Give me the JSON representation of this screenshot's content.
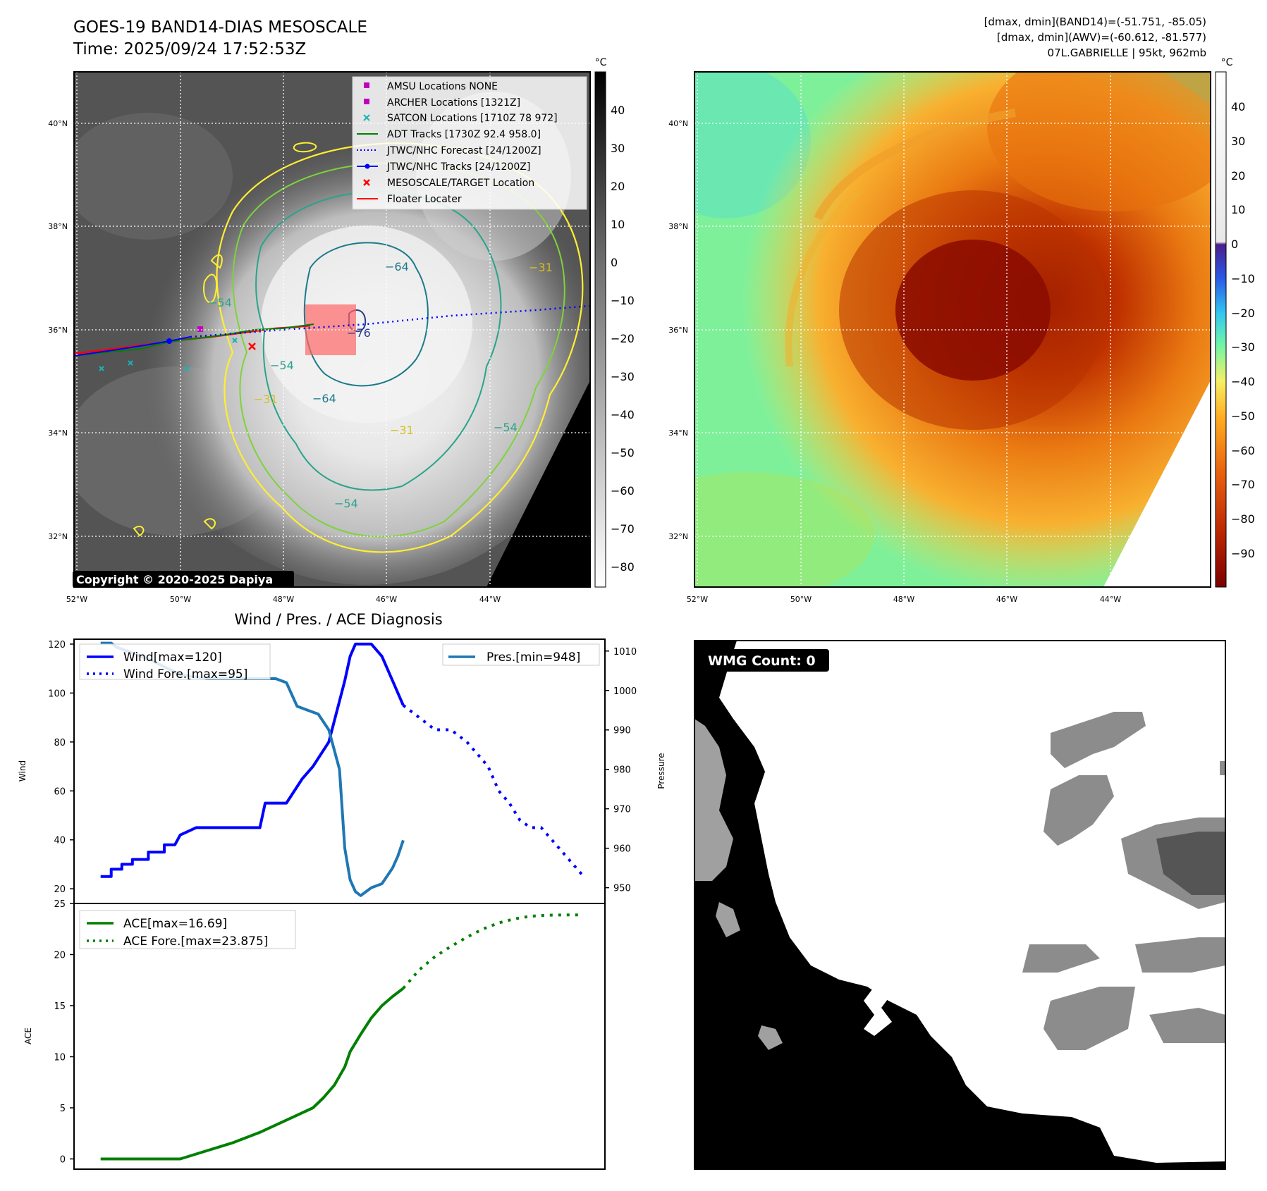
{
  "header": {
    "title": "GOES-19 BAND14-DIAS MESOSCALE",
    "time": "Time: 2025/09/24 17:52:53Z",
    "stats_line1": "[dmax, dmin](BAND14)=(-51.751, -85.05)",
    "stats_line2": "[dmax, dmin](AWV)=(-60.612, -81.577)",
    "storm_line": "07L.GABRIELLE | 95kt, 962mb"
  },
  "map_axes": {
    "lat_labels": [
      "40°N",
      "38°N",
      "36°N",
      "34°N",
      "32°N"
    ],
    "lon_labels": [
      "52°W",
      "50°W",
      "48°W",
      "46°W",
      "44°W"
    ]
  },
  "ir_panel": {
    "copyright": "Copyright © 2020-2025 Dapiya",
    "colorbar_unit": "°C",
    "colorbar_ticks": [
      "40",
      "30",
      "20",
      "10",
      "0",
      "−10",
      "−20",
      "−30",
      "−40",
      "−50",
      "−60",
      "−70",
      "−80"
    ],
    "contour_labels": [
      "−64",
      "−54",
      "−64",
      "−54",
      "−31",
      "−31",
      "−54",
      "−54",
      "−31",
      "−76"
    ],
    "legend": [
      {
        "label": "AMSU Locations NONE",
        "marker": "square",
        "color": "#c000c0"
      },
      {
        "label": "ARCHER Locations [1321Z]",
        "marker": "square",
        "color": "#c000c0"
      },
      {
        "label": "SATCON Locations [1710Z 78 972]",
        "marker": "x",
        "color": "#19b3b3"
      },
      {
        "label": "ADT Tracks [1730Z 92.4 958.0]",
        "marker": "line",
        "color": "#008000"
      },
      {
        "label": "JTWC/NHC Forecast [24/1200Z]",
        "marker": "dotted",
        "color": "#0000ff"
      },
      {
        "label": "JTWC/NHC Tracks [24/1200Z]",
        "marker": "line-dot",
        "color": "#0000ff"
      },
      {
        "label": "MESOSCALE/TARGET Location",
        "marker": "x",
        "color": "#ff0000"
      },
      {
        "label": "Floater Locater",
        "marker": "line",
        "color": "#ff0000"
      }
    ]
  },
  "awv_panel": {
    "colorbar_unit": "°C",
    "colorbar_ticks": [
      "40",
      "30",
      "20",
      "10",
      "0",
      "−10",
      "−20",
      "−30",
      "−40",
      "−50",
      "−60",
      "−70",
      "−80",
      "−90"
    ]
  },
  "wmg_panel": {
    "label": "WMG Count: 0"
  },
  "chart_data": [
    {
      "type": "line",
      "title": "Wind / Pres. / ACE Diagnosis",
      "ylabel": "Wind",
      "ylabel_right": "Pressure",
      "ylim": [
        14,
        122
      ],
      "ylim_right": [
        946,
        1013
      ],
      "y_ticks": [
        20,
        40,
        60,
        80,
        100,
        120
      ],
      "y_ticks_right": [
        950,
        960,
        970,
        980,
        990,
        1000,
        1010
      ],
      "x_range": [
        0,
        100
      ],
      "series": [
        {
          "name": "Wind[max=120]",
          "axis": "left",
          "style": "solid",
          "color": "#0000ff",
          "x": [
            5,
            7,
            7,
            9,
            9,
            11,
            11,
            14,
            14,
            17,
            17,
            19,
            20,
            23,
            24,
            27,
            28,
            30,
            34,
            35,
            36,
            37,
            40,
            43,
            45,
            48,
            51,
            52,
            53,
            55,
            56,
            58,
            60,
            62
          ],
          "y": [
            25,
            25,
            28,
            28,
            30,
            30,
            32,
            32,
            35,
            35,
            38,
            38,
            42,
            45,
            45,
            45,
            45,
            45,
            45,
            45,
            55,
            55,
            55,
            65,
            70,
            80,
            105,
            115,
            120,
            120,
            120,
            115,
            105,
            95
          ]
        },
        {
          "name": "Wind Fore.[max=95]",
          "axis": "left",
          "style": "dotted",
          "color": "#0000ff",
          "x": [
            62,
            65,
            68,
            71,
            74,
            76,
            78,
            80,
            82,
            84,
            86,
            88,
            90,
            92,
            94,
            96
          ],
          "y": [
            95,
            90,
            85,
            85,
            80,
            75,
            70,
            60,
            55,
            48,
            45,
            45,
            40,
            35,
            30,
            25
          ]
        },
        {
          "name": "Pres.[min=948]",
          "axis": "right",
          "style": "solid",
          "color": "#1f77b4",
          "x": [
            5,
            7,
            8,
            10,
            12,
            14,
            17,
            20,
            25,
            30,
            35,
            38,
            40,
            42,
            44,
            46,
            48,
            50,
            51,
            52,
            53,
            54,
            56,
            58,
            59,
            60,
            61,
            62
          ],
          "y": [
            1012,
            1012,
            1011,
            1010,
            1009,
            1008,
            1006,
            1004,
            1003,
            1003,
            1003,
            1003,
            1002,
            996,
            995,
            994,
            990,
            980,
            960,
            952,
            949,
            948,
            950,
            951,
            953,
            955,
            958,
            962
          ]
        }
      ]
    },
    {
      "type": "line",
      "ylabel": "ACE",
      "ylim": [
        -1,
        25
      ],
      "y_ticks": [
        0,
        5,
        10,
        15,
        20,
        25
      ],
      "x_range": [
        0,
        100
      ],
      "series": [
        {
          "name": "ACE[max=16.69]",
          "style": "solid",
          "color": "#008000",
          "x": [
            5,
            10,
            15,
            20,
            25,
            30,
            35,
            40,
            45,
            47,
            49,
            51,
            52,
            54,
            56,
            58,
            60,
            62
          ],
          "y": [
            0,
            0,
            0,
            0,
            0.8,
            1.6,
            2.6,
            3.8,
            5.0,
            6.0,
            7.2,
            9.0,
            10.5,
            12.2,
            13.8,
            15.0,
            15.9,
            16.69
          ]
        },
        {
          "name": "ACE Fore.[max=23.875]",
          "style": "dotted",
          "color": "#008000",
          "x": [
            62,
            65,
            68,
            71,
            74,
            77,
            80,
            83,
            86,
            89,
            92,
            95
          ],
          "y": [
            16.69,
            18.5,
            19.8,
            20.8,
            21.7,
            22.5,
            23.1,
            23.5,
            23.75,
            23.85,
            23.875,
            23.875
          ]
        }
      ]
    }
  ]
}
